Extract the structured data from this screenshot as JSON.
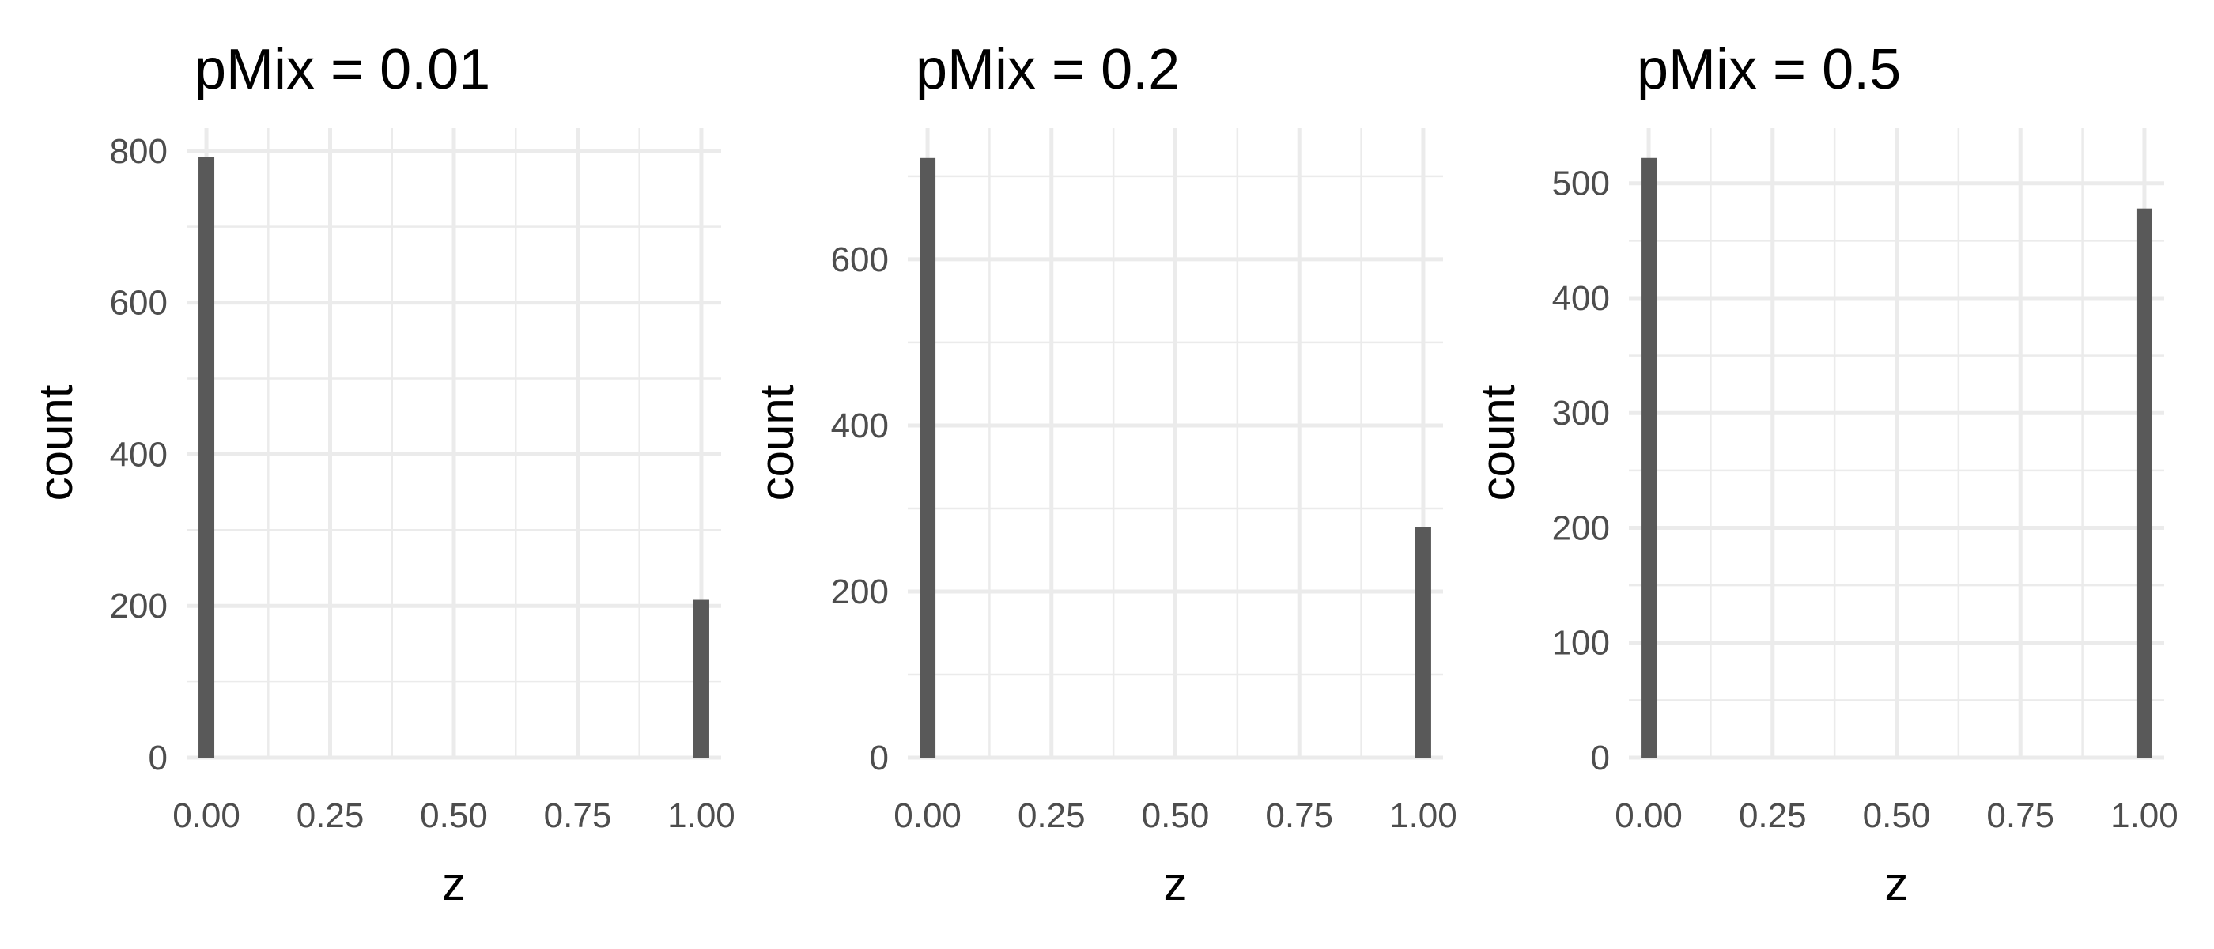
{
  "colors": {
    "bar_fill": "#595959",
    "grid": "#ebebeb",
    "tick_text": "#4d4d4d",
    "title_text": "#000000",
    "background": "#ffffff"
  },
  "chart_data": [
    {
      "type": "bar",
      "title": "pMix = 0.01",
      "xlabel": "z",
      "ylabel": "count",
      "x": [
        0,
        1
      ],
      "values": [
        792,
        208
      ],
      "xlim": [
        -0.04,
        1.04
      ],
      "ylim": [
        0,
        830
      ],
      "xticks": [
        0,
        0.25,
        0.5,
        0.75,
        1
      ],
      "xtick_labels": [
        "0.00",
        "0.25",
        "0.50",
        "0.75",
        "1.00"
      ],
      "yticks": [
        0,
        200,
        400,
        600,
        800
      ],
      "ytick_labels": [
        "0",
        "200",
        "400",
        "600",
        "800"
      ],
      "grid": true,
      "legend": "none"
    },
    {
      "type": "bar",
      "title": "pMix = 0.2",
      "xlabel": "z",
      "ylabel": "count",
      "x": [
        0,
        1
      ],
      "values": [
        722,
        278
      ],
      "xlim": [
        -0.04,
        1.04
      ],
      "ylim": [
        0,
        758
      ],
      "xticks": [
        0,
        0.25,
        0.5,
        0.75,
        1
      ],
      "xtick_labels": [
        "0.00",
        "0.25",
        "0.50",
        "0.75",
        "1.00"
      ],
      "yticks": [
        0,
        200,
        400,
        600
      ],
      "ytick_labels": [
        "0",
        "200",
        "400",
        "600"
      ],
      "grid": true,
      "legend": "none"
    },
    {
      "type": "bar",
      "title": "pMix = 0.5",
      "xlabel": "z",
      "ylabel": "count",
      "x": [
        0,
        1
      ],
      "values": [
        522,
        478
      ],
      "xlim": [
        -0.04,
        1.04
      ],
      "ylim": [
        0,
        548
      ],
      "xticks": [
        0,
        0.25,
        0.5,
        0.75,
        1
      ],
      "xtick_labels": [
        "0.00",
        "0.25",
        "0.50",
        "0.75",
        "1.00"
      ],
      "yticks": [
        0,
        100,
        200,
        300,
        400,
        500
      ],
      "ytick_labels": [
        "0",
        "100",
        "200",
        "300",
        "400",
        "500"
      ],
      "grid": true,
      "legend": "none"
    }
  ]
}
